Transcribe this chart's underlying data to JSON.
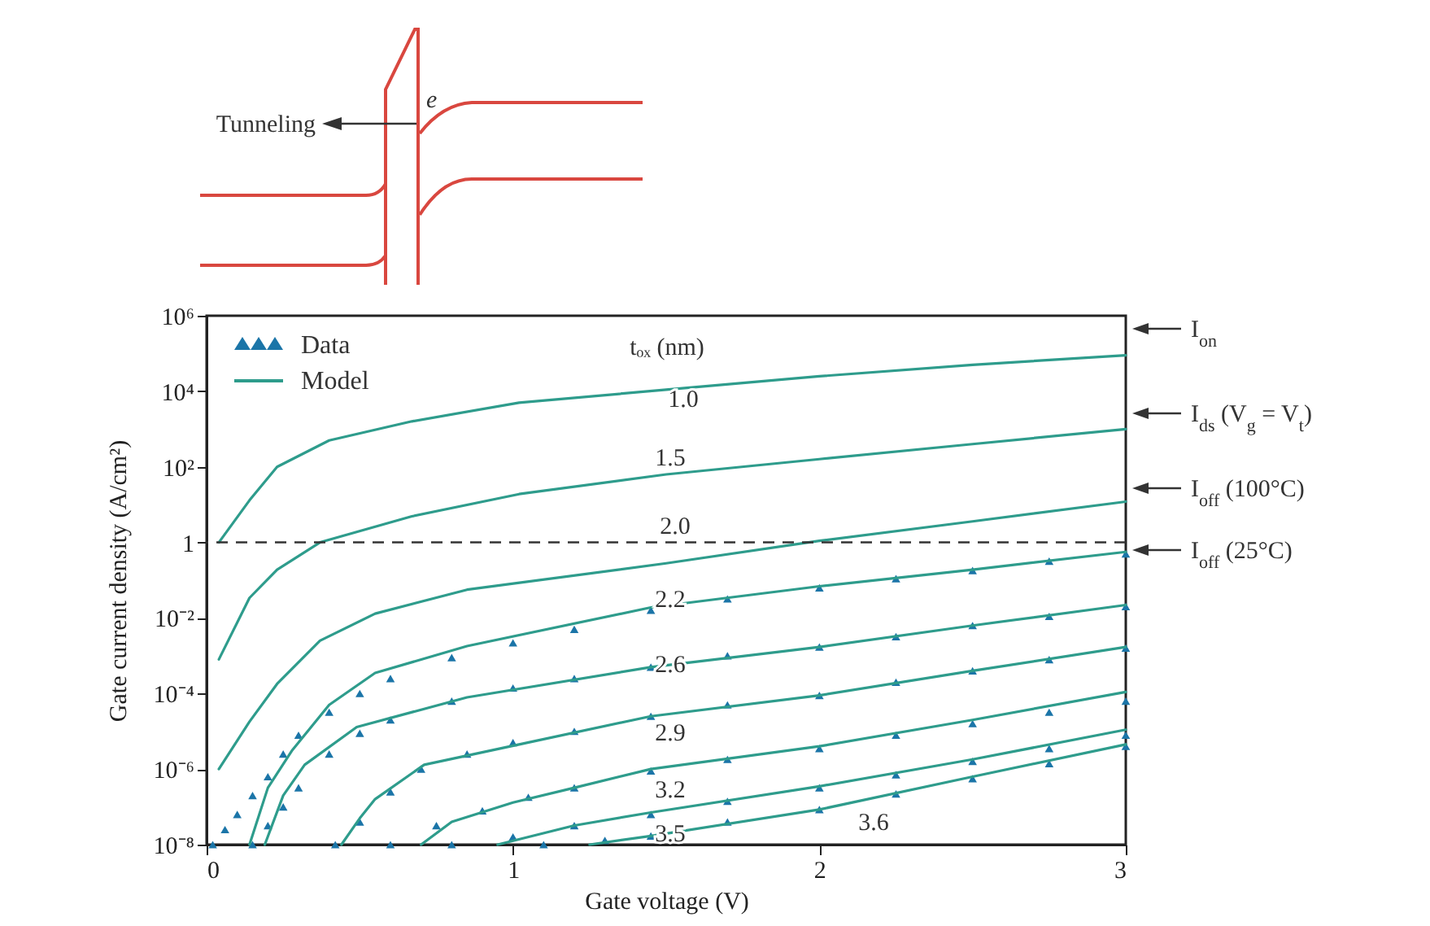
{
  "chart_data": {
    "type": "line",
    "xlabel": "Gate voltage (V)",
    "ylabel": "Gate current density (A/cm²)",
    "log": "y",
    "xlim": [
      0,
      3
    ],
    "xticks": [
      0,
      1,
      2,
      3
    ],
    "ylim": [
      1e-08,
      1000000.0
    ],
    "yticks": [
      {
        "value": 1e-08,
        "label": "10⁻⁸"
      },
      {
        "value": 1e-06,
        "label": "10⁻⁶"
      },
      {
        "value": 0.0001,
        "label": "10⁻⁴"
      },
      {
        "value": 0.01,
        "label": "10⁻²"
      },
      1,
      {
        "value": 100,
        "label": "10²"
      },
      {
        "value": 10000.0,
        "label": "10⁴"
      },
      {
        "value": 1000000.0,
        "label": "10⁶"
      }
    ],
    "legend": "top left",
    "series": [
      {
        "name": "Data",
        "type": "scatter",
        "marker": "triangle",
        "color": "#1b75a8",
        "x": [
          0.02,
          0.06,
          0.1,
          0.15,
          0.2,
          0.25,
          0.3,
          0.4,
          0.5,
          0.6,
          0.8,
          1.0,
          1.2,
          1.45,
          1.7,
          2.0,
          2.25,
          2.5,
          2.75,
          3.0,
          0.15,
          0.2,
          0.25,
          0.3,
          0.4,
          0.5,
          0.6,
          0.8,
          1.0,
          1.2,
          1.45,
          1.7,
          2.0,
          2.25,
          2.5,
          2.75,
          3.0,
          0.42,
          0.5,
          0.6,
          0.7,
          0.85,
          1.0,
          1.2,
          1.45,
          1.7,
          2.0,
          2.25,
          2.5,
          2.75,
          3.0,
          0.6,
          0.75,
          0.9,
          1.05,
          1.2,
          1.45,
          1.7,
          2.0,
          2.25,
          2.5,
          2.75,
          3.0,
          0.8,
          1.0,
          1.2,
          1.45,
          1.7,
          2.0,
          2.25,
          2.5,
          2.75,
          3.0,
          1.1,
          1.3,
          1.45,
          1.7,
          2.0,
          2.25,
          2.5,
          2.75,
          3.0
        ],
        "values": [
          1e-08,
          2.5e-08,
          6.3e-08,
          2e-07,
          6.3e-07,
          2.5e-06,
          7.9e-06,
          3.2e-05,
          0.0001,
          0.00025,
          0.00089,
          0.0022,
          0.005,
          0.016,
          0.032,
          0.063,
          0.11,
          0.18,
          0.32,
          0.5,
          1e-08,
          3.2e-08,
          1e-07,
          3.2e-07,
          2.5e-06,
          8.9e-06,
          2e-05,
          6.3e-05,
          0.00014,
          0.00025,
          0.0005,
          0.001,
          0.0017,
          0.0032,
          0.0063,
          0.011,
          0.02,
          1e-08,
          4e-08,
          2.5e-07,
          1e-06,
          2.5e-06,
          5e-06,
          1e-05,
          2.5e-05,
          5e-05,
          8.9e-05,
          0.0002,
          0.0004,
          0.00079,
          0.0016,
          1e-08,
          3.2e-08,
          7.9e-08,
          1.8e-07,
          3.2e-07,
          8.9e-07,
          1.8e-06,
          3.5e-06,
          7.9e-06,
          1.6e-05,
          3.2e-05,
          6.3e-05,
          1e-08,
          1.6e-08,
          3.2e-08,
          6.3e-08,
          1.4e-07,
          3.2e-07,
          7.1e-07,
          1.6e-06,
          3.5e-06,
          7.9e-06,
          1e-08,
          1.3e-08,
          1.7e-08,
          4e-08,
          8.5e-08,
          2.2e-07,
          5.6e-07,
          1.4e-06,
          4e-06
        ]
      },
      {
        "name": "Model",
        "color": "#2e9c8c",
        "x": [
          0.04,
          0.14,
          0.23,
          0.4,
          0.67,
          1.02,
          1.5,
          2.0,
          2.5,
          3.0
        ],
        "values": [
          1,
          13,
          100,
          500,
          1600,
          5000,
          11000.0,
          25000.0,
          50000.0,
          90000.0
        ]
      },
      {
        "color": "#2e9c8c",
        "x": [
          0.04,
          0.14,
          0.23,
          0.37,
          0.67,
          1.02,
          1.5,
          2.0,
          2.5,
          3.0
        ],
        "values": [
          0.0008,
          0.034,
          0.19,
          1,
          4.9,
          19,
          63,
          160,
          400,
          1000
        ]
      },
      {
        "color": "#2e9c8c",
        "x": [
          0.04,
          0.14,
          0.23,
          0.37,
          0.55,
          0.85,
          1.5,
          2.0,
          2.5,
          3.0
        ],
        "values": [
          1e-06,
          1.8e-05,
          0.00018,
          0.0025,
          0.013,
          0.056,
          0.28,
          1.1,
          3.6,
          12
        ]
      },
      {
        "color": "#2e9c8c",
        "x": [
          0.14,
          0.2,
          0.28,
          0.4,
          0.55,
          0.85,
          1.45,
          2.0,
          2.5,
          3.0
        ],
        "values": [
          1e-08,
          3.2e-07,
          3.2e-06,
          5e-05,
          0.00035,
          0.0018,
          0.019,
          0.069,
          0.19,
          0.56
        ]
      },
      {
        "color": "#2e9c8c",
        "x": [
          0.19,
          0.25,
          0.32,
          0.49,
          0.85,
          1.45,
          2.0,
          2.5,
          3.0
        ],
        "values": [
          1e-08,
          2e-07,
          1.3e-06,
          1.3e-05,
          7.9e-05,
          0.0005,
          0.0017,
          0.0063,
          0.022
        ]
      },
      {
        "color": "#2e9c8c",
        "x": [
          0.44,
          0.5,
          0.55,
          0.71,
          1.02,
          1.45,
          2.0,
          2.5,
          3.0
        ],
        "values": [
          1e-08,
          5e-08,
          1.6e-07,
          1.3e-06,
          4.5e-06,
          2.5e-05,
          8.9e-05,
          0.0004,
          0.0017
        ]
      },
      {
        "color": "#2e9c8c",
        "x": [
          0.7,
          0.8,
          1.0,
          1.2,
          1.45,
          2.0,
          2.5,
          3.0
        ],
        "values": [
          1e-08,
          4e-08,
          1.3e-07,
          3.2e-07,
          1e-06,
          4e-06,
          2e-05,
          0.00011
        ]
      },
      {
        "color": "#2e9c8c",
        "x": [
          0.95,
          1.2,
          1.45,
          2.0,
          2.5,
          3.0
        ],
        "values": [
          1e-08,
          3.2e-08,
          7.1e-08,
          3.5e-07,
          1.8e-06,
          1.1e-05
        ]
      },
      {
        "color": "#2e9c8c",
        "x": [
          1.25,
          1.45,
          2.0,
          2.5,
          3.0
        ],
        "values": [
          1e-08,
          1.7e-08,
          8.5e-08,
          6.3e-07,
          4.5e-06
        ]
      }
    ],
    "ref_lines": [
      {
        "axis": "y",
        "value": 1,
        "color": "#333333",
        "line_style": "dashed"
      }
    ],
    "annotations": [
      "Tunneling",
      "e",
      "tₒₓ (nm)",
      "1.0",
      "1.5",
      "2.0",
      "2.2",
      "2.6",
      "2.9",
      "3.2",
      "3.5",
      "3.6",
      "I$_{on}$",
      "I$_{ds}$ (V$_{g}$ = V$_{t}$)",
      "I$_{off}$ (100°C)",
      "I$_{off}$ (25°C)"
    ]
  }
}
